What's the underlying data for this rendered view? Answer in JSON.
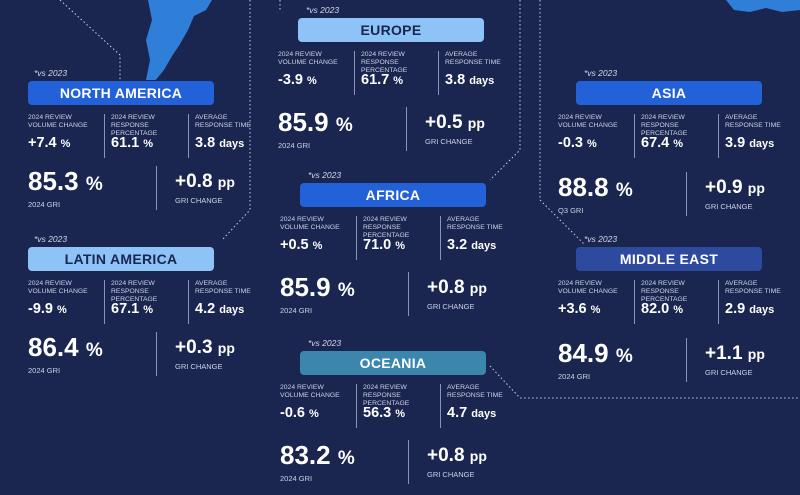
{
  "colors": {
    "background": "#1a2550",
    "pill_blue": "#2361d9",
    "pill_light_blue": "#8dc3f6",
    "pill_navy": "#2e4a9e",
    "pill_teal": "#3a86ad",
    "map_blue": "#2f7fd8"
  },
  "labels": {
    "vs": "*vs 2023",
    "volume_change": "2024 REVIEW VOLUME CHANGE",
    "response_pct": "2024 REVIEW RESPONSE PERCENTAGE",
    "response_time": "AVERAGE RESPONSE TIME",
    "gri_2024": "2024 GRI",
    "gri_q3": "Q3 GRI",
    "gri_change": "GRI CHANGE"
  },
  "units": {
    "percent": "%",
    "days": "days",
    "pp": "pp"
  },
  "regions": {
    "north_america": {
      "name": "NORTH AMERICA",
      "volume": "+7.4",
      "response_pct": "61.1",
      "response_time": "3.8",
      "gri": "85.3",
      "gri_label": "2024 GRI",
      "gri_change": "+0.8"
    },
    "latin_america": {
      "name": "LATIN AMERICA",
      "volume": "-9.9",
      "response_pct": "67.1",
      "response_time": "4.2",
      "gri": "86.4",
      "gri_label": "2024 GRI",
      "gri_change": "+0.3"
    },
    "europe": {
      "name": "EUROPE",
      "volume": "-3.9",
      "response_pct": "61.7",
      "response_time": "3.8",
      "gri": "85.9",
      "gri_label": "2024 GRI",
      "gri_change": "+0.5"
    },
    "africa": {
      "name": "AFRICA",
      "volume": "+0.5",
      "response_pct": "71.0",
      "response_time": "3.2",
      "gri": "85.9",
      "gri_label": "2024 GRI",
      "gri_change": "+0.8"
    },
    "oceania": {
      "name": "OCEANIA",
      "volume": "-0.6",
      "response_pct": "56.3",
      "response_time": "4.7",
      "gri": "83.2",
      "gri_label": "2024 GRI",
      "gri_change": "+0.8"
    },
    "asia": {
      "name": "ASIA",
      "volume": "-0.3",
      "response_pct": "67.4",
      "response_time": "3.9",
      "gri": "88.8",
      "gri_label": "Q3 GRI",
      "gri_change": "+0.9"
    },
    "middle_east": {
      "name": "MIDDLE EAST",
      "volume": "+3.6",
      "response_pct": "82.0",
      "response_time": "2.9",
      "gri": "84.9",
      "gri_label": "2024 GRI",
      "gri_change": "+1.1"
    }
  }
}
